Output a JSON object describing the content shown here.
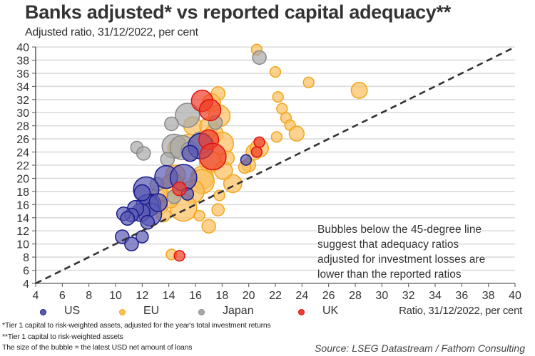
{
  "title": "Banks adjusted* vs reported capital adequacy**",
  "subtitle": "Adjusted ratio, 31/12/2022, per cent",
  "annotation": [
    "Bubbles below the 45-degree line",
    "suggest that adequacy ratios",
    "adjusted for investment losses are",
    "lower than the reported ratios"
  ],
  "footnotes": {
    "f1": "*Tier 1 capital to risk-weighted assets, adjusted for the year's total investment returns",
    "f2": "**Tier 1 capital to risk-weighted assets",
    "f3": "The size of the bubble =  the latest USD net amount of loans"
  },
  "source": "Source: LSEG Datastream / Fathom Consulting",
  "chart_data": {
    "type": "scatter",
    "title": "Banks adjusted* vs reported capital adequacy**",
    "subtitle": "Adjusted ratio, 31/12/2022, per cent",
    "xlabel": "Ratio, 31/12/2022, per cent",
    "ylabel": "Adjusted ratio, 31/12/2022, per cent",
    "xlim": [
      4,
      40
    ],
    "ylim": [
      4,
      40
    ],
    "xticks": [
      4,
      6,
      8,
      10,
      12,
      14,
      16,
      18,
      20,
      22,
      24,
      26,
      28,
      30,
      32,
      34,
      36,
      38,
      40
    ],
    "yticks": [
      4,
      6,
      8,
      10,
      12,
      14,
      16,
      18,
      20,
      22,
      24,
      26,
      28,
      30,
      32,
      34,
      36,
      38,
      40
    ],
    "grid": true,
    "legend_position": "bottom-left",
    "reference_line": {
      "label": "45-degree line",
      "from": [
        4,
        4
      ],
      "to": [
        40,
        40
      ]
    },
    "series": [
      {
        "name": "US",
        "color": "#1a1a8c",
        "fill": "#5a5ab4",
        "points": [
          {
            "x": 13.8,
            "y": 20.2,
            "size": 7
          },
          {
            "x": 15.1,
            "y": 20.1,
            "size": 10
          },
          {
            "x": 12.3,
            "y": 18.3,
            "size": 9
          },
          {
            "x": 12.6,
            "y": 16.0,
            "size": 6
          },
          {
            "x": 12.4,
            "y": 15.8,
            "size": 7
          },
          {
            "x": 12.6,
            "y": 14.5,
            "size": 7
          },
          {
            "x": 11.9,
            "y": 14.8,
            "size": 4
          },
          {
            "x": 11.5,
            "y": 15.4,
            "size": 3
          },
          {
            "x": 13.2,
            "y": 16.3,
            "size": 4
          },
          {
            "x": 11.2,
            "y": 14.4,
            "size": 2
          },
          {
            "x": 10.6,
            "y": 14.6,
            "size": 2
          },
          {
            "x": 10.9,
            "y": 13.9,
            "size": 2
          },
          {
            "x": 12.4,
            "y": 13.3,
            "size": 2
          },
          {
            "x": 10.5,
            "y": 11.1,
            "size": 2
          },
          {
            "x": 11.2,
            "y": 10.0,
            "size": 2
          },
          {
            "x": 12.0,
            "y": 11.1,
            "size": 1.5
          },
          {
            "x": 16.4,
            "y": 24.9,
            "size": 9
          },
          {
            "x": 15.6,
            "y": 23.8,
            "size": 3
          },
          {
            "x": 12.0,
            "y": 17.8,
            "size": 3
          },
          {
            "x": 15.4,
            "y": 17.6,
            "size": 1.5
          },
          {
            "x": 19.8,
            "y": 22.8,
            "size": 1
          }
        ]
      },
      {
        "name": "EU",
        "color": "#f2a51c",
        "fill": "#fbbf5c",
        "points": [
          {
            "x": 20.6,
            "y": 39.6,
            "size": 1
          },
          {
            "x": 22.0,
            "y": 36.2,
            "size": 1
          },
          {
            "x": 24.5,
            "y": 34.6,
            "size": 1
          },
          {
            "x": 28.3,
            "y": 33.4,
            "size": 3
          },
          {
            "x": 22.2,
            "y": 32.4,
            "size": 1
          },
          {
            "x": 22.5,
            "y": 30.6,
            "size": 1
          },
          {
            "x": 22.8,
            "y": 29.2,
            "size": 1
          },
          {
            "x": 23.1,
            "y": 28.1,
            "size": 1
          },
          {
            "x": 23.6,
            "y": 26.8,
            "size": 2.5
          },
          {
            "x": 22.1,
            "y": 26.3,
            "size": 1
          },
          {
            "x": 20.4,
            "y": 24.0,
            "size": 3
          },
          {
            "x": 20.8,
            "y": 24.6,
            "size": 4
          },
          {
            "x": 20.0,
            "y": 22.0,
            "size": 2
          },
          {
            "x": 19.7,
            "y": 21.7,
            "size": 1.5
          },
          {
            "x": 18.8,
            "y": 19.2,
            "size": 4
          },
          {
            "x": 17.7,
            "y": 32.9,
            "size": 2
          },
          {
            "x": 17.2,
            "y": 31.5,
            "size": 4
          },
          {
            "x": 17.8,
            "y": 29.5,
            "size": 6
          },
          {
            "x": 15.8,
            "y": 28.0,
            "size": 4
          },
          {
            "x": 17.0,
            "y": 27.9,
            "size": 4
          },
          {
            "x": 17.4,
            "y": 26.8,
            "size": 4
          },
          {
            "x": 18.0,
            "y": 25.3,
            "size": 7
          },
          {
            "x": 15.5,
            "y": 25.1,
            "size": 6
          },
          {
            "x": 14.6,
            "y": 24.6,
            "size": 4
          },
          {
            "x": 17.1,
            "y": 22.5,
            "size": 6
          },
          {
            "x": 18.1,
            "y": 21.2,
            "size": 4
          },
          {
            "x": 16.5,
            "y": 20.1,
            "size": 7
          },
          {
            "x": 14.5,
            "y": 20.5,
            "size": 5
          },
          {
            "x": 14.3,
            "y": 19.0,
            "size": 7
          },
          {
            "x": 16.5,
            "y": 19.5,
            "size": 8
          },
          {
            "x": 15.8,
            "y": 18.0,
            "size": 7
          },
          {
            "x": 15.1,
            "y": 15.5,
            "size": 10
          },
          {
            "x": 14.1,
            "y": 16.7,
            "size": 3
          },
          {
            "x": 13.4,
            "y": 15.6,
            "size": 2
          },
          {
            "x": 13.3,
            "y": 17.7,
            "size": 3
          },
          {
            "x": 17.0,
            "y": 12.7,
            "size": 2
          },
          {
            "x": 17.7,
            "y": 15.2,
            "size": 1.5
          },
          {
            "x": 17.8,
            "y": 17.4,
            "size": 1
          },
          {
            "x": 14.2,
            "y": 8.4,
            "size": 1
          },
          {
            "x": 16.3,
            "y": 14.3,
            "size": 1
          },
          {
            "x": 18.4,
            "y": 23.1,
            "size": 2
          },
          {
            "x": 13.6,
            "y": 14.4,
            "size": 2
          }
        ]
      },
      {
        "name": "Japan",
        "color": "#888888",
        "fill": "#a9a9a9",
        "points": [
          {
            "x": 20.8,
            "y": 38.4,
            "size": 2
          },
          {
            "x": 15.4,
            "y": 29.6,
            "size": 8
          },
          {
            "x": 17.5,
            "y": 28.5,
            "size": 2
          },
          {
            "x": 14.2,
            "y": 28.3,
            "size": 2
          },
          {
            "x": 11.6,
            "y": 24.7,
            "size": 1.5
          },
          {
            "x": 12.1,
            "y": 23.8,
            "size": 2
          },
          {
            "x": 14.4,
            "y": 24.9,
            "size": 8
          },
          {
            "x": 15.0,
            "y": 24.7,
            "size": 8
          },
          {
            "x": 15.6,
            "y": 24.2,
            "size": 4
          },
          {
            "x": 16.4,
            "y": 25.4,
            "size": 6
          },
          {
            "x": 13.9,
            "y": 22.9,
            "size": 2
          },
          {
            "x": 13.1,
            "y": 19.1,
            "size": 2
          },
          {
            "x": 14.4,
            "y": 17.2,
            "size": 2
          }
        ]
      },
      {
        "name": "UK",
        "color": "#e0100f",
        "fill": "#f03c2a",
        "points": [
          {
            "x": 16.5,
            "y": 31.8,
            "size": 6
          },
          {
            "x": 17.1,
            "y": 30.4,
            "size": 6
          },
          {
            "x": 17.0,
            "y": 25.9,
            "size": 5
          },
          {
            "x": 17.3,
            "y": 23.3,
            "size": 10
          },
          {
            "x": 14.8,
            "y": 18.4,
            "size": 2
          },
          {
            "x": 20.8,
            "y": 25.5,
            "size": 1
          },
          {
            "x": 20.6,
            "y": 24.0,
            "size": 1
          },
          {
            "x": 14.8,
            "y": 8.2,
            "size": 1
          }
        ]
      }
    ]
  }
}
